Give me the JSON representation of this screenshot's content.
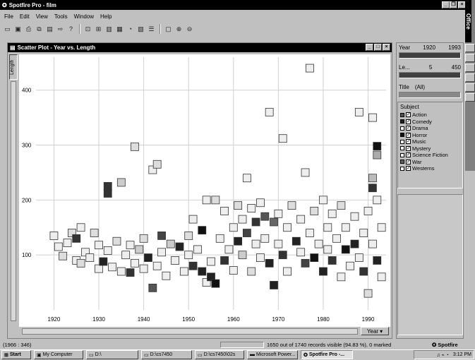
{
  "app": {
    "title": "Spotfire Pro - film",
    "menu": [
      "File",
      "Edit",
      "View",
      "Tools",
      "Window",
      "Help"
    ]
  },
  "plot_window": {
    "title": "Scatter Plot - Year vs. Length",
    "y_axis_button": "Length",
    "x_axis_button": "Year"
  },
  "filters": {
    "year": {
      "label": "Year",
      "min": "1920",
      "max": "1993"
    },
    "length": {
      "label": "Le...",
      "min": "5",
      "max": "450"
    },
    "title": {
      "label": "Title",
      "value": "(All)"
    },
    "subject_label": "Subject",
    "subjects": [
      {
        "name": "Action",
        "checked": true,
        "color": "#505050"
      },
      {
        "name": "Comedy",
        "checked": true,
        "color": "#202020"
      },
      {
        "name": "Drama",
        "checked": true,
        "color": "#ffffff"
      },
      {
        "name": "Horror",
        "checked": true,
        "color": "#101010"
      },
      {
        "name": "Music",
        "checked": true,
        "color": "#ffffff"
      },
      {
        "name": "Mystery",
        "checked": true,
        "color": "#ffffff"
      },
      {
        "name": "Science Fiction",
        "checked": true,
        "color": "#ffffff"
      },
      {
        "name": "War",
        "checked": true,
        "color": "#606060"
      },
      {
        "name": "Westerns",
        "checked": true,
        "color": "#ffffff"
      }
    ]
  },
  "status": {
    "coords": "(1966 : 346)",
    "records": "1650 out of 1740 records visible (94.83 %), 0 marked",
    "brand": "Spotfire"
  },
  "taskbar": {
    "start": "Start",
    "items": [
      "My Computer",
      "D:\\",
      "D:\\cs7450",
      "D:\\cs7450\\02s",
      "Microsoft Power...",
      "Spotfire Pro -..."
    ],
    "clock": "3:12 PM"
  },
  "chart_data": {
    "type": "scatter",
    "title": "Scatter Plot - Year vs. Length",
    "xlabel": "Year",
    "ylabel": "Length",
    "xlim": [
      1916,
      1994
    ],
    "ylim": [
      0,
      460
    ],
    "x_ticks": [
      1920,
      1930,
      1940,
      1950,
      1960,
      1970,
      1980,
      1990
    ],
    "y_ticks": [
      100,
      200,
      300,
      400
    ],
    "grid": true,
    "marker": "square",
    "points": [
      {
        "x": 1920,
        "y": 135,
        "c": "#eee"
      },
      {
        "x": 1921,
        "y": 115,
        "c": "#eee"
      },
      {
        "x": 1922,
        "y": 98,
        "c": "#ddd"
      },
      {
        "x": 1923,
        "y": 122,
        "c": "#eee"
      },
      {
        "x": 1924,
        "y": 140,
        "c": "#ddd"
      },
      {
        "x": 1925,
        "y": 90,
        "c": "#eee"
      },
      {
        "x": 1925,
        "y": 130,
        "c": "#333"
      },
      {
        "x": 1926,
        "y": 150,
        "c": "#eee"
      },
      {
        "x": 1926,
        "y": 85,
        "c": "#ddd"
      },
      {
        "x": 1927,
        "y": 105,
        "c": "#eee"
      },
      {
        "x": 1928,
        "y": 95,
        "c": "#eee"
      },
      {
        "x": 1929,
        "y": 140,
        "c": "#ddd"
      },
      {
        "x": 1930,
        "y": 75,
        "c": "#eee"
      },
      {
        "x": 1930,
        "y": 118,
        "c": "#eee"
      },
      {
        "x": 1931,
        "y": 88,
        "c": "#222"
      },
      {
        "x": 1932,
        "y": 225,
        "c": "#333"
      },
      {
        "x": 1932,
        "y": 212,
        "c": "#333"
      },
      {
        "x": 1932,
        "y": 108,
        "c": "#eee"
      },
      {
        "x": 1933,
        "y": 78,
        "c": "#eee"
      },
      {
        "x": 1934,
        "y": 125,
        "c": "#ddd"
      },
      {
        "x": 1935,
        "y": 70,
        "c": "#eee"
      },
      {
        "x": 1935,
        "y": 232,
        "c": "#ccc"
      },
      {
        "x": 1936,
        "y": 100,
        "c": "#eee"
      },
      {
        "x": 1937,
        "y": 68,
        "c": "#333"
      },
      {
        "x": 1937,
        "y": 118,
        "c": "#eee"
      },
      {
        "x": 1938,
        "y": 297,
        "c": "#ddd"
      },
      {
        "x": 1938,
        "y": 85,
        "c": "#eee"
      },
      {
        "x": 1939,
        "y": 110,
        "c": "#ccc"
      },
      {
        "x": 1940,
        "y": 75,
        "c": "#eee"
      },
      {
        "x": 1940,
        "y": 130,
        "c": "#ddd"
      },
      {
        "x": 1941,
        "y": 95,
        "c": "#222"
      },
      {
        "x": 1942,
        "y": 255,
        "c": "#eee"
      },
      {
        "x": 1942,
        "y": 40,
        "c": "#555"
      },
      {
        "x": 1943,
        "y": 265,
        "c": "#ddd"
      },
      {
        "x": 1943,
        "y": 80,
        "c": "#eee"
      },
      {
        "x": 1944,
        "y": 135,
        "c": "#444"
      },
      {
        "x": 1944,
        "y": 105,
        "c": "#eee"
      },
      {
        "x": 1945,
        "y": 62,
        "c": "#eee"
      },
      {
        "x": 1946,
        "y": 120,
        "c": "#ccc"
      },
      {
        "x": 1947,
        "y": 90,
        "c": "#eee"
      },
      {
        "x": 1948,
        "y": 115,
        "c": "#222"
      },
      {
        "x": 1949,
        "y": 70,
        "c": "#eee"
      },
      {
        "x": 1950,
        "y": 100,
        "c": "#eee"
      },
      {
        "x": 1950,
        "y": 135,
        "c": "#ddd"
      },
      {
        "x": 1951,
        "y": 80,
        "c": "#333"
      },
      {
        "x": 1951,
        "y": 165,
        "c": "#eee"
      },
      {
        "x": 1952,
        "y": 110,
        "c": "#eee"
      },
      {
        "x": 1953,
        "y": 70,
        "c": "#222"
      },
      {
        "x": 1953,
        "y": 145,
        "c": "#111"
      },
      {
        "x": 1954,
        "y": 200,
        "c": "#eee"
      },
      {
        "x": 1954,
        "y": 50,
        "c": "#eee"
      },
      {
        "x": 1955,
        "y": 88,
        "c": "#eee"
      },
      {
        "x": 1955,
        "y": 60,
        "c": "#222"
      },
      {
        "x": 1956,
        "y": 200,
        "c": "#ddd"
      },
      {
        "x": 1956,
        "y": 48,
        "c": "#111"
      },
      {
        "x": 1957,
        "y": 130,
        "c": "#eee"
      },
      {
        "x": 1958,
        "y": 180,
        "c": "#eee"
      },
      {
        "x": 1958,
        "y": 90,
        "c": "#333"
      },
      {
        "x": 1959,
        "y": 110,
        "c": "#eee"
      },
      {
        "x": 1960,
        "y": 150,
        "c": "#eee"
      },
      {
        "x": 1960,
        "y": 72,
        "c": "#eee"
      },
      {
        "x": 1961,
        "y": 190,
        "c": "#ddd"
      },
      {
        "x": 1961,
        "y": 125,
        "c": "#222"
      },
      {
        "x": 1962,
        "y": 165,
        "c": "#eee"
      },
      {
        "x": 1962,
        "y": 100,
        "c": "#ccc"
      },
      {
        "x": 1963,
        "y": 240,
        "c": "#eee"
      },
      {
        "x": 1963,
        "y": 140,
        "c": "#444"
      },
      {
        "x": 1964,
        "y": 185,
        "c": "#eee"
      },
      {
        "x": 1964,
        "y": 70,
        "c": "#ddd"
      },
      {
        "x": 1965,
        "y": 120,
        "c": "#eee"
      },
      {
        "x": 1965,
        "y": 160,
        "c": "#333"
      },
      {
        "x": 1966,
        "y": 95,
        "c": "#eee"
      },
      {
        "x": 1966,
        "y": 195,
        "c": "#eee"
      },
      {
        "x": 1967,
        "y": 170,
        "c": "#555"
      },
      {
        "x": 1967,
        "y": 130,
        "c": "#eee"
      },
      {
        "x": 1968,
        "y": 360,
        "c": "#eee"
      },
      {
        "x": 1968,
        "y": 85,
        "c": "#222"
      },
      {
        "x": 1969,
        "y": 160,
        "c": "#666"
      },
      {
        "x": 1969,
        "y": 45,
        "c": "#222"
      },
      {
        "x": 1970,
        "y": 120,
        "c": "#eee"
      },
      {
        "x": 1970,
        "y": 175,
        "c": "#eee"
      },
      {
        "x": 1971,
        "y": 312,
        "c": "#eee"
      },
      {
        "x": 1971,
        "y": 100,
        "c": "#333"
      },
      {
        "x": 1972,
        "y": 150,
        "c": "#eee"
      },
      {
        "x": 1972,
        "y": 70,
        "c": "#eee"
      },
      {
        "x": 1973,
        "y": 190,
        "c": "#ddd"
      },
      {
        "x": 1974,
        "y": 125,
        "c": "#222"
      },
      {
        "x": 1975,
        "y": 105,
        "c": "#eee"
      },
      {
        "x": 1975,
        "y": 165,
        "c": "#eee"
      },
      {
        "x": 1976,
        "y": 250,
        "c": "#eee"
      },
      {
        "x": 1976,
        "y": 85,
        "c": "#444"
      },
      {
        "x": 1977,
        "y": 440,
        "c": "#eee"
      },
      {
        "x": 1977,
        "y": 140,
        "c": "#eee"
      },
      {
        "x": 1978,
        "y": 180,
        "c": "#ddd"
      },
      {
        "x": 1978,
        "y": 95,
        "c": "#111"
      },
      {
        "x": 1979,
        "y": 120,
        "c": "#eee"
      },
      {
        "x": 1980,
        "y": 200,
        "c": "#eee"
      },
      {
        "x": 1980,
        "y": 70,
        "c": "#222"
      },
      {
        "x": 1981,
        "y": 150,
        "c": "#eee"
      },
      {
        "x": 1981,
        "y": 110,
        "c": "#eee"
      },
      {
        "x": 1982,
        "y": 175,
        "c": "#eee"
      },
      {
        "x": 1982,
        "y": 90,
        "c": "#333"
      },
      {
        "x": 1983,
        "y": 130,
        "c": "#eee"
      },
      {
        "x": 1984,
        "y": 60,
        "c": "#eee"
      },
      {
        "x": 1984,
        "y": 190,
        "c": "#ddd"
      },
      {
        "x": 1985,
        "y": 110,
        "c": "#111"
      },
      {
        "x": 1985,
        "y": 150,
        "c": "#eee"
      },
      {
        "x": 1986,
        "y": 80,
        "c": "#eee"
      },
      {
        "x": 1987,
        "y": 170,
        "c": "#eee"
      },
      {
        "x": 1987,
        "y": 120,
        "c": "#222"
      },
      {
        "x": 1988,
        "y": 95,
        "c": "#eee"
      },
      {
        "x": 1988,
        "y": 360,
        "c": "#eee"
      },
      {
        "x": 1989,
        "y": 140,
        "c": "#eee"
      },
      {
        "x": 1989,
        "y": 70,
        "c": "#333"
      },
      {
        "x": 1990,
        "y": 180,
        "c": "#eee"
      },
      {
        "x": 1990,
        "y": 30,
        "c": "#ddd"
      },
      {
        "x": 1991,
        "y": 350,
        "c": "#eee"
      },
      {
        "x": 1991,
        "y": 240,
        "c": "#bbb"
      },
      {
        "x": 1991,
        "y": 222,
        "c": "#333"
      },
      {
        "x": 1991,
        "y": 120,
        "c": "#eee"
      },
      {
        "x": 1992,
        "y": 298,
        "c": "#111"
      },
      {
        "x": 1992,
        "y": 282,
        "c": "#aaa"
      },
      {
        "x": 1992,
        "y": 200,
        "c": "#eee"
      },
      {
        "x": 1992,
        "y": 90,
        "c": "#222"
      },
      {
        "x": 1993,
        "y": 150,
        "c": "#eee"
      },
      {
        "x": 1993,
        "y": 60,
        "c": "#eee"
      }
    ]
  }
}
